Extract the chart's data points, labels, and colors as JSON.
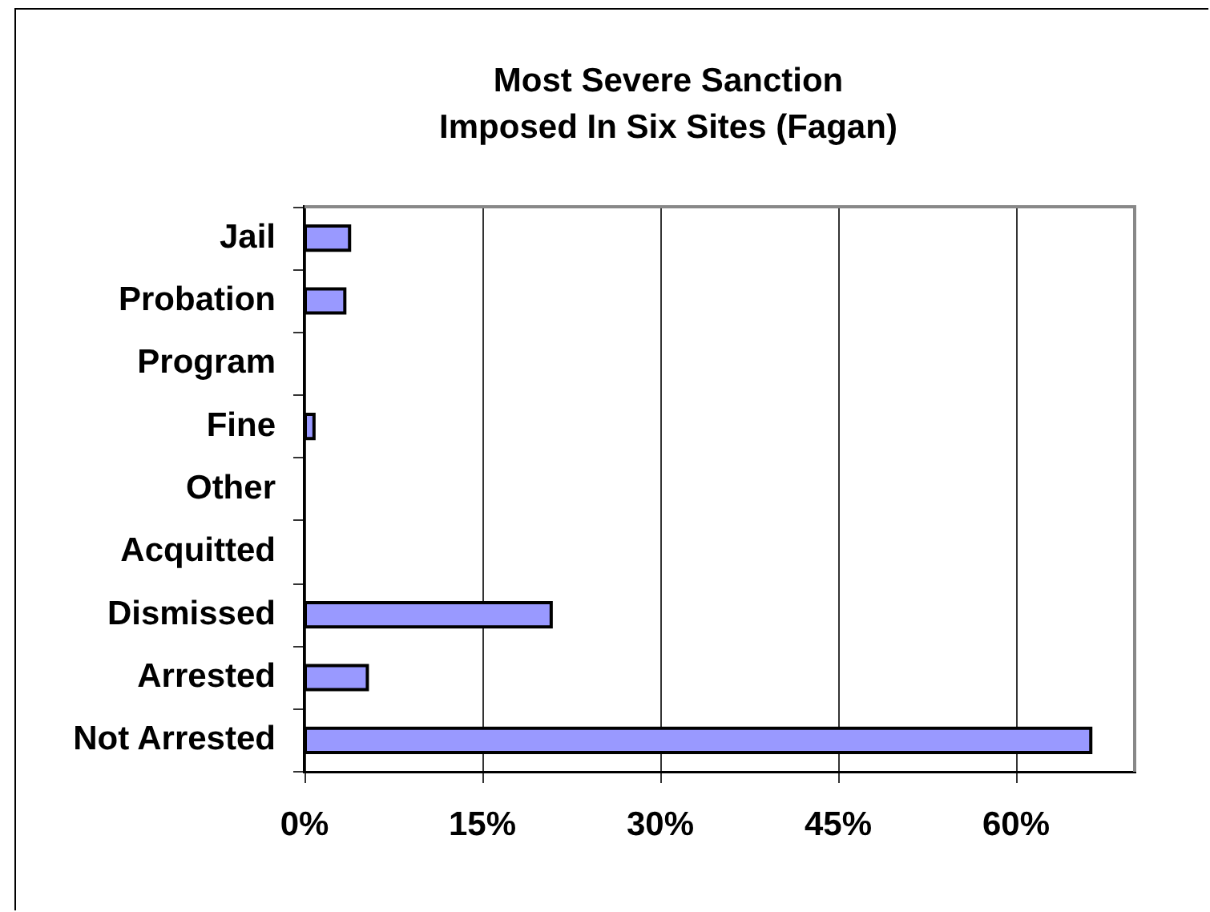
{
  "chart_data": {
    "type": "bar",
    "orientation": "horizontal",
    "title": "Most Severe Sanction\nImposed In Six Sites (Fagan)",
    "categories": [
      "Jail",
      "Probation",
      "Program",
      "Fine",
      "Other",
      "Acquitted",
      "Dismissed",
      "Arrested",
      "Not Arrested"
    ],
    "values": [
      3.8,
      3.4,
      0,
      0.8,
      0,
      0,
      20.8,
      5.3,
      66.3
    ],
    "color": "#9999ff",
    "xlim": [
      0,
      70
    ],
    "xticks": [
      {
        "value": 0,
        "label": "0%"
      },
      {
        "value": 15,
        "label": "15%"
      },
      {
        "value": 30,
        "label": "30%"
      },
      {
        "value": 45,
        "label": "45%"
      },
      {
        "value": 60,
        "label": "60%"
      }
    ],
    "grid": "x"
  }
}
